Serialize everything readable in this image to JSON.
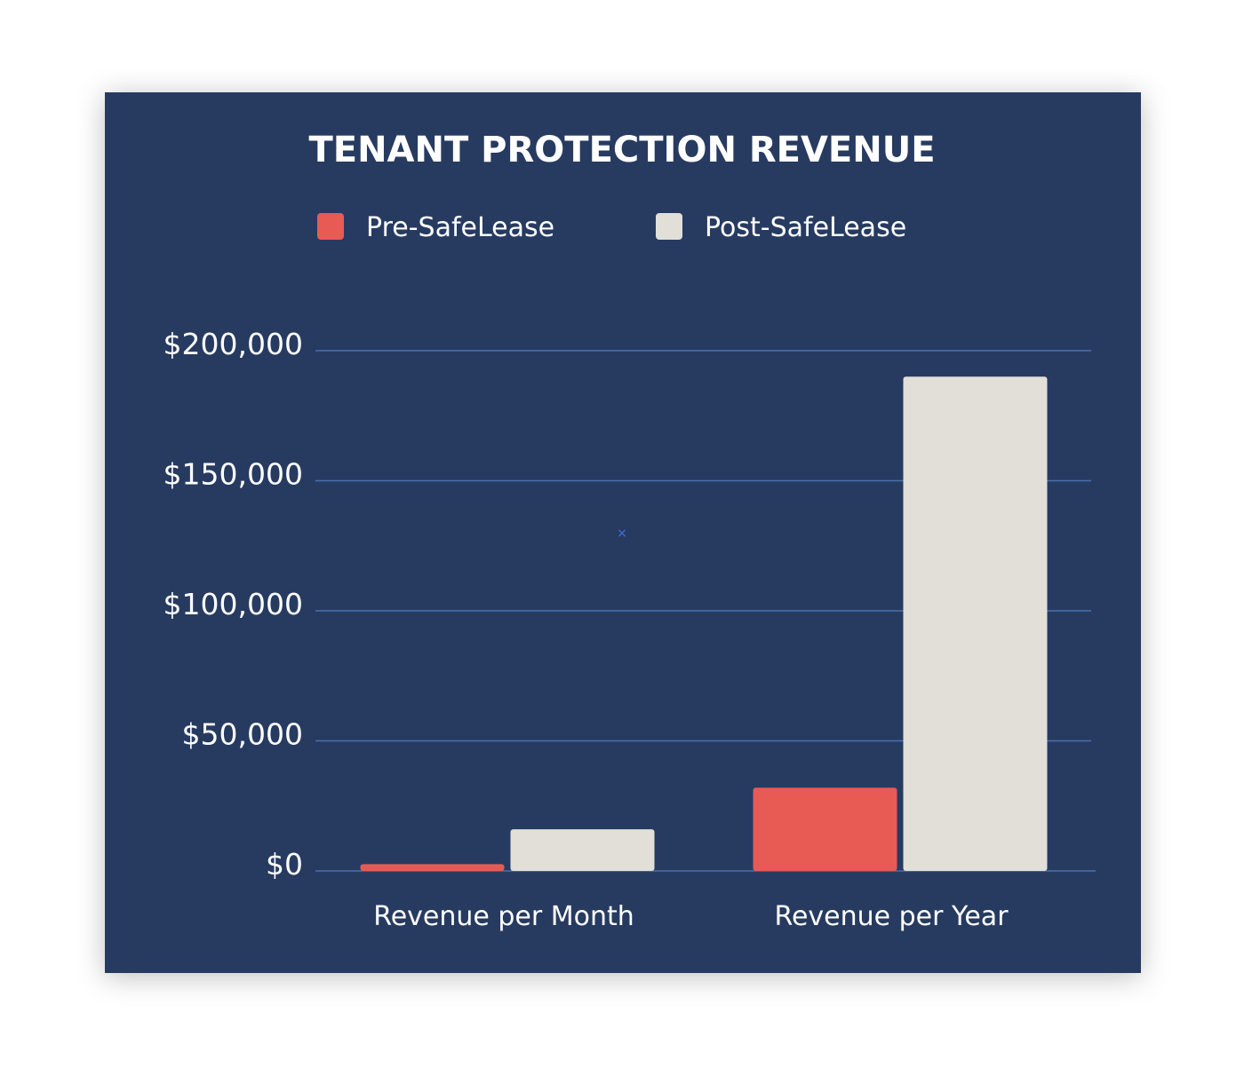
{
  "colors": {
    "background": "#273b61",
    "pre": "#e85a54",
    "post": "#e2dfd8",
    "grid": "#4a6fb0",
    "text": "#ffffff"
  },
  "chart_data": {
    "type": "bar",
    "title": "TENANT PROTECTION REVENUE",
    "xlabel": "",
    "ylabel": "",
    "categories": [
      "Revenue per Month",
      "Revenue per Year"
    ],
    "series": [
      {
        "name": "Pre-SafeLease",
        "color": "#e85a54",
        "values": [
          2600,
          32000
        ]
      },
      {
        "name": "Post-SafeLease",
        "color": "#e2dfd8",
        "values": [
          16000,
          190000
        ]
      }
    ],
    "ylim": [
      0,
      200000
    ],
    "y_ticks": [
      0,
      50000,
      100000,
      150000,
      200000
    ],
    "y_tick_labels": [
      "$0",
      "$50,000",
      "$100,000",
      "$150,000",
      "$200,000"
    ],
    "grid": true,
    "legend_position": "top"
  }
}
